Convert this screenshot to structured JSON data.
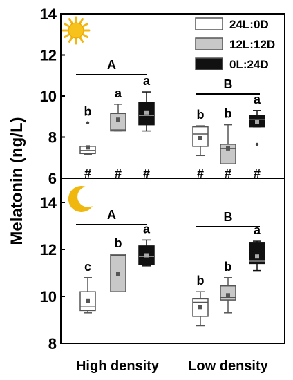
{
  "chart_data": {
    "type": "boxplot",
    "ylabel": "Melatonin (ng/L)",
    "categories": [
      "High density",
      "Low density"
    ],
    "legend": [
      {
        "label": "24L:0D",
        "fill": "#ffffff"
      },
      {
        "label": "12L:12D",
        "fill": "#c8c8c8"
      },
      {
        "label": "0L:24D",
        "fill": "#111111"
      }
    ],
    "panels": [
      {
        "icon": "sun-icon",
        "ylim": [
          6,
          14
        ],
        "yticks": [
          6,
          8,
          10,
          12,
          14
        ],
        "groups": [
          {
            "category": "High density",
            "bracket_label": "A",
            "boxes": [
              {
                "series": "24L:0D",
                "min": 7.15,
                "q1": 7.2,
                "median": 7.35,
                "q3": 7.55,
                "max": 7.55,
                "mean": 7.5,
                "outliers": [
                  8.7
                ],
                "letter": "b",
                "mark": "#"
              },
              {
                "series": "12L:12D",
                "min": 8.3,
                "q1": 8.3,
                "median": 8.35,
                "q3": 9.15,
                "max": 9.6,
                "mean": 8.85,
                "outliers": [],
                "letter": "a",
                "mark": "#"
              },
              {
                "series": "0L:24D",
                "min": 8.3,
                "q1": 8.6,
                "median": 9.05,
                "q3": 9.7,
                "max": 10.2,
                "mean": 9.2,
                "outliers": [],
                "letter": "a",
                "mark": "#"
              }
            ]
          },
          {
            "category": "Low density",
            "bracket_label": "B",
            "boxes": [
              {
                "series": "24L:0D",
                "min": 7.1,
                "q1": 7.55,
                "median": 8.15,
                "q3": 8.5,
                "max": 8.55,
                "mean": 7.95,
                "outliers": [],
                "letter": "b",
                "mark": "#"
              },
              {
                "series": "12L:12D",
                "min": 6.7,
                "q1": 6.7,
                "median": 7.45,
                "q3": 7.65,
                "max": 8.6,
                "mean": 7.45,
                "outliers": [],
                "letter": "b",
                "mark": "#"
              },
              {
                "series": "0L:24D",
                "min": 8.5,
                "q1": 8.5,
                "median": 8.85,
                "q3": 9.05,
                "max": 9.3,
                "mean": 8.75,
                "outliers": [
                  7.65
                ],
                "letter": "a",
                "mark": "#"
              }
            ]
          }
        ]
      },
      {
        "icon": "moon-icon",
        "ylim": [
          8,
          15.2
        ],
        "yticks": [
          8,
          10,
          12,
          14
        ],
        "groups": [
          {
            "category": "High density",
            "bracket_label": "A",
            "boxes": [
              {
                "series": "24L:0D",
                "min": 9.3,
                "q1": 9.4,
                "median": 9.55,
                "q3": 10.2,
                "max": 10.8,
                "mean": 9.8,
                "outliers": [],
                "letter": "c",
                "mark": ""
              },
              {
                "series": "12L:12D",
                "min": 10.2,
                "q1": 10.2,
                "median": 11.75,
                "q3": 11.8,
                "max": 11.8,
                "mean": 10.95,
                "outliers": [],
                "letter": "b",
                "mark": ""
              },
              {
                "series": "0L:24D",
                "min": 11.3,
                "q1": 11.35,
                "median": 11.7,
                "q3": 12.15,
                "max": 12.4,
                "mean": 11.75,
                "outliers": [],
                "letter": "a",
                "mark": ""
              }
            ]
          },
          {
            "category": "Low density",
            "bracket_label": "B",
            "boxes": [
              {
                "series": "24L:0D",
                "min": 8.75,
                "q1": 9.15,
                "median": 9.75,
                "q3": 9.9,
                "max": 10.2,
                "mean": 9.55,
                "outliers": [],
                "letter": "b",
                "mark": ""
              },
              {
                "series": "12L:12D",
                "min": 9.3,
                "q1": 9.85,
                "median": 9.95,
                "q3": 10.45,
                "max": 10.8,
                "mean": 10.05,
                "outliers": [],
                "letter": "b",
                "mark": ""
              },
              {
                "series": "0L:24D",
                "min": 11.1,
                "q1": 11.4,
                "median": 11.5,
                "q3": 12.3,
                "max": 12.35,
                "mean": 11.7,
                "outliers": [],
                "letter": "a",
                "mark": ""
              }
            ]
          }
        ]
      }
    ]
  }
}
